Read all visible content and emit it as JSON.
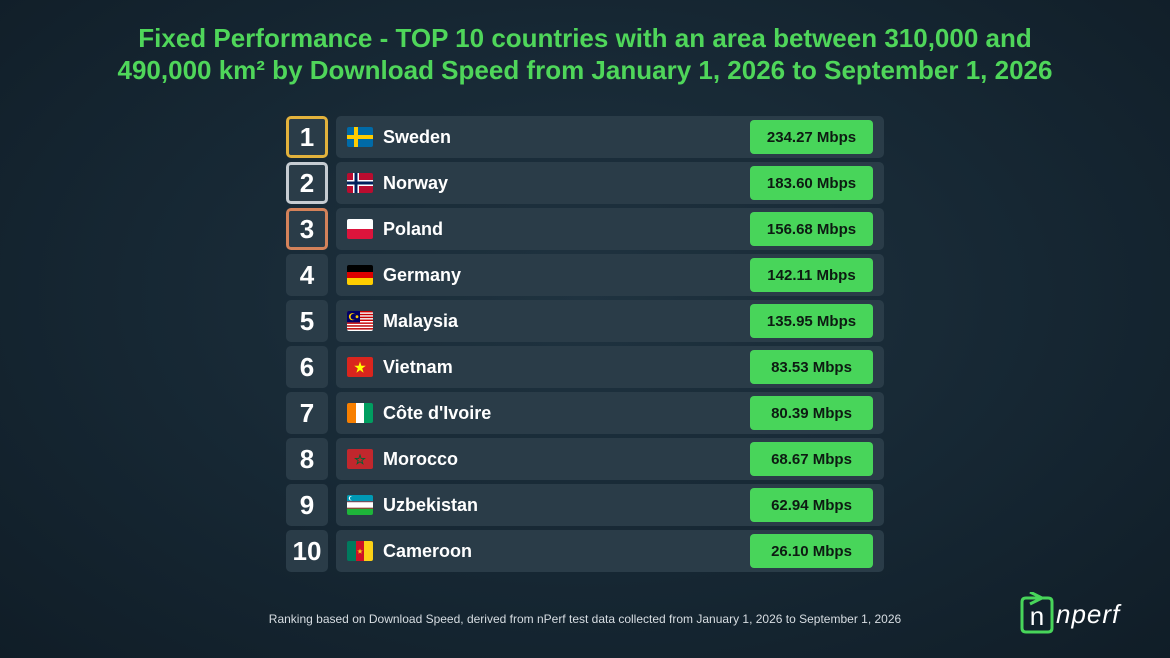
{
  "title": {
    "line1": "Fixed Performance - TOP 10 countries with an area between 310,000 and",
    "line2": "490,000 km² by Download Speed from January 1, 2026 to September 1, 2026"
  },
  "chart_data": {
    "type": "table",
    "unit": "Mbps",
    "rows": [
      {
        "rank": "1",
        "country": "Sweden",
        "speed": "234.27 Mbps",
        "value": 234.27,
        "flag": "flag-sweden-icon"
      },
      {
        "rank": "2",
        "country": "Norway",
        "speed": "183.60 Mbps",
        "value": 183.6,
        "flag": "flag-norway-icon"
      },
      {
        "rank": "3",
        "country": "Poland",
        "speed": "156.68 Mbps",
        "value": 156.68,
        "flag": "flag-poland-icon"
      },
      {
        "rank": "4",
        "country": "Germany",
        "speed": "142.11 Mbps",
        "value": 142.11,
        "flag": "flag-germany-icon"
      },
      {
        "rank": "5",
        "country": "Malaysia",
        "speed": "135.95 Mbps",
        "value": 135.95,
        "flag": "flag-malaysia-icon"
      },
      {
        "rank": "6",
        "country": "Vietnam",
        "speed": "83.53 Mbps",
        "value": 83.53,
        "flag": "flag-vietnam-icon"
      },
      {
        "rank": "7",
        "country": "Côte d'Ivoire",
        "speed": "80.39 Mbps",
        "value": 80.39,
        "flag": "flag-cote-divoire-icon"
      },
      {
        "rank": "8",
        "country": "Morocco",
        "speed": "68.67 Mbps",
        "value": 68.67,
        "flag": "flag-morocco-icon"
      },
      {
        "rank": "9",
        "country": "Uzbekistan",
        "speed": "62.94 Mbps",
        "value": 62.94,
        "flag": "flag-uzbekistan-icon"
      },
      {
        "rank": "10",
        "country": "Cameroon",
        "speed": "26.10 Mbps",
        "value": 26.1,
        "flag": "flag-cameroon-icon"
      }
    ]
  },
  "footer": "Ranking based on Download Speed, derived from nPerf test data collected from January 1, 2026 to September 1, 2026",
  "logo": {
    "text": "nperf",
    "icon": "nperf-logo-icon"
  },
  "colors": {
    "title": "#4fd65a",
    "speed_badge": "#48d55a",
    "row_bg": "#2a3c48",
    "gold": "#e3b23c",
    "silver": "#c6ccd2",
    "bronze": "#d4825a"
  }
}
